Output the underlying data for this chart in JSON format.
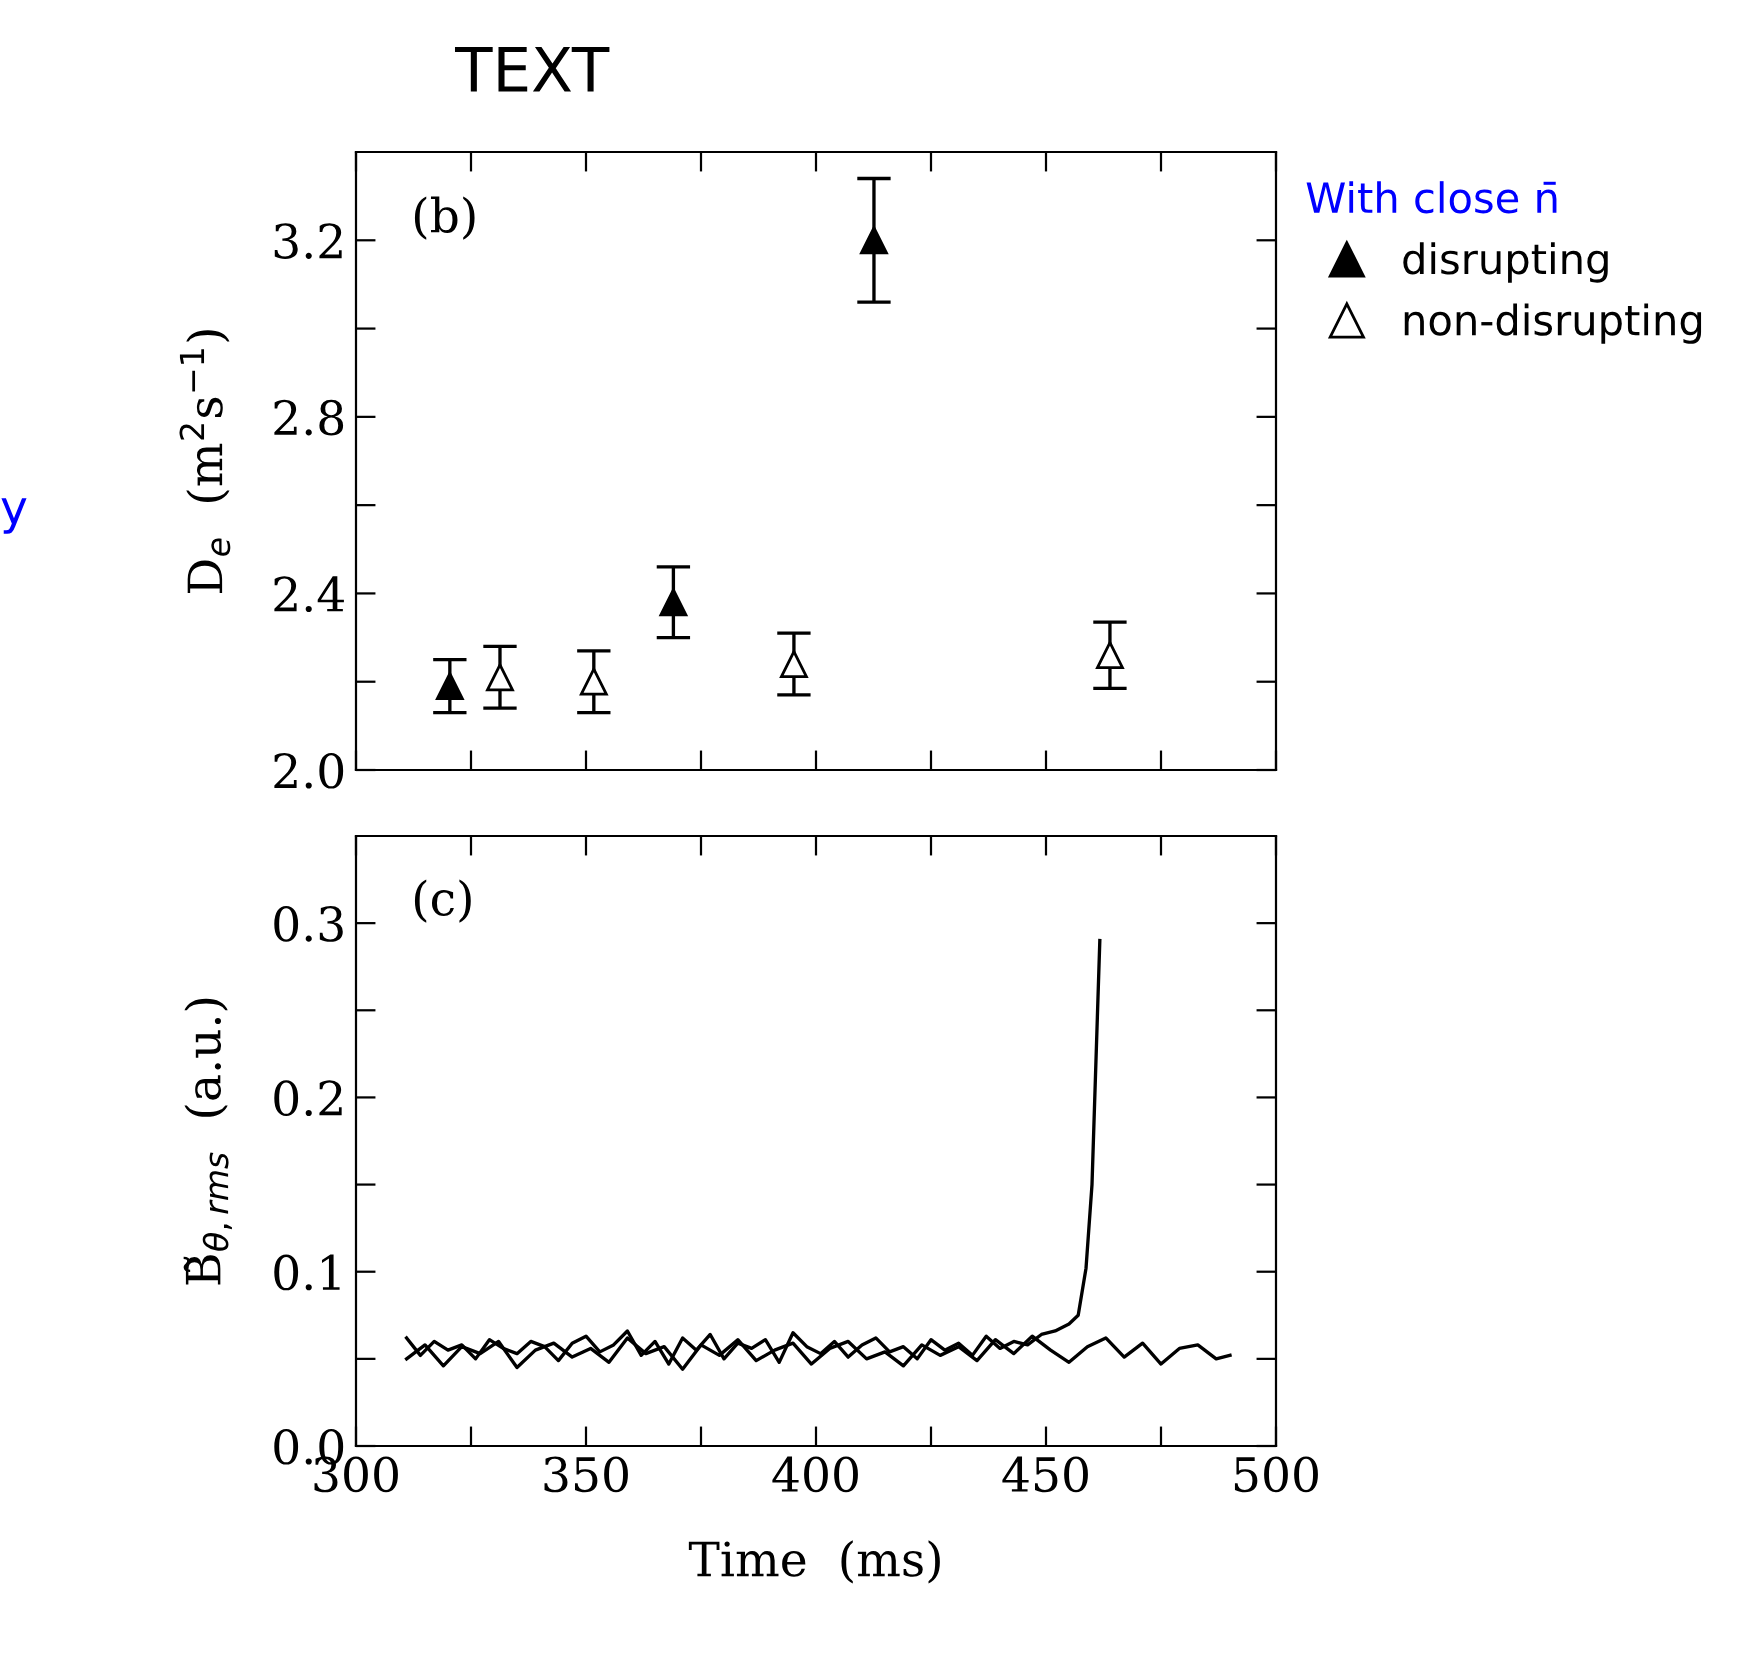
{
  "chart_data": [
    {
      "type": "scatter",
      "title": "TEXT",
      "ylabel": "D$_{e}$  (m$^{2}$s$^{−1}$)",
      "legend_title": "With close n̄",
      "legend": "right",
      "marker": "triangle",
      "annotations": [
        "(b)",
        "y"
      ],
      "xlim": [
        300,
        500
      ],
      "xticks": [
        {
          "value": 300,
          "label": null
        },
        {
          "value": 325,
          "label": null
        },
        {
          "value": 350,
          "label": null
        },
        {
          "value": 375,
          "label": null
        },
        {
          "value": 400,
          "label": null
        },
        {
          "value": 425,
          "label": null
        },
        {
          "value": 450,
          "label": null
        },
        {
          "value": 475,
          "label": null
        },
        {
          "value": 500,
          "label": null
        }
      ],
      "ylim": [
        2.0,
        3.4
      ],
      "yticks": [
        {
          "value": 2.0,
          "label": "2.0"
        },
        {
          "value": 2.2,
          "label": null
        },
        {
          "value": 2.4,
          "label": "2.4"
        },
        {
          "value": 2.6,
          "label": null
        },
        {
          "value": 2.8,
          "label": "2.8"
        },
        {
          "value": 3.0,
          "label": null
        },
        {
          "value": 3.2,
          "label": "3.2"
        }
      ],
      "tick_labels": "y",
      "series": [
        {
          "name": "disrupting",
          "color": "#000000",
          "x": [
            320.4,
            369,
            412.6
          ],
          "values": [
            2.19,
            2.38,
            3.2
          ],
          "errors": [
            0.06,
            0.08,
            0.14
          ]
        },
        {
          "name": "non-disrupting",
          "color": "#ffffff",
          "x": [
            331.3,
            351.7,
            395.2,
            463.9
          ],
          "values": [
            2.21,
            2.2,
            2.24,
            2.26
          ],
          "errors": [
            0.07,
            0.07,
            0.07,
            0.075
          ]
        }
      ]
    },
    {
      "type": "line",
      "xlabel": "Time  (ms)",
      "ylabel": "B̃$_{θ,rms}$  (a.u.)",
      "annotations": [
        "(c)"
      ],
      "xlim": [
        300,
        500
      ],
      "xticks": [
        300,
        {
          "value": 325,
          "label": null
        },
        350,
        {
          "value": 375,
          "label": null
        },
        400,
        {
          "value": 425,
          "label": null
        },
        450,
        {
          "value": 475,
          "label": null
        },
        500
      ],
      "ylim": [
        0,
        0.35
      ],
      "yticks": [
        {
          "value": 0.0,
          "label": "0.0"
        },
        {
          "value": 0.05,
          "label": null
        },
        {
          "value": 0.1,
          "label": "0.1"
        },
        {
          "value": 0.15,
          "label": null
        },
        {
          "value": 0.2,
          "label": "0.2"
        },
        {
          "value": 0.25,
          "label": null
        },
        {
          "value": 0.3,
          "label": "0.3"
        }
      ],
      "series": [
        {
          "color": "#000000",
          "x": [
            311,
            314,
            317,
            320,
            323,
            326,
            329,
            332,
            335,
            338,
            341,
            344,
            347,
            350,
            353,
            356,
            359,
            362,
            365,
            368,
            371,
            374,
            377,
            380,
            383,
            386,
            389,
            392,
            395,
            398,
            401,
            404,
            407,
            410,
            413,
            416,
            419,
            422,
            425,
            428,
            431,
            434,
            437,
            440,
            443,
            446,
            449,
            452,
            455,
            457,
            458.7,
            460,
            461.7
          ],
          "values": [
            0.062,
            0.052,
            0.06,
            0.055,
            0.058,
            0.05,
            0.061,
            0.056,
            0.053,
            0.06,
            0.057,
            0.049,
            0.059,
            0.063,
            0.054,
            0.058,
            0.066,
            0.052,
            0.06,
            0.047,
            0.062,
            0.055,
            0.064,
            0.05,
            0.059,
            0.056,
            0.061,
            0.048,
            0.065,
            0.057,
            0.053,
            0.06,
            0.051,
            0.058,
            0.062,
            0.054,
            0.057,
            0.05,
            0.061,
            0.055,
            0.059,
            0.052,
            0.063,
            0.056,
            0.06,
            0.058,
            0.064,
            0.066,
            0.07,
            0.075,
            0.102,
            0.15,
            0.29
          ]
        },
        {
          "color": "#000000",
          "x": [
            311,
            315,
            319,
            323,
            327,
            331,
            335,
            339,
            343,
            347,
            351,
            355,
            359,
            363,
            367,
            371,
            375,
            379,
            383,
            387,
            391,
            395,
            399,
            403,
            407,
            411,
            415,
            419,
            423,
            427,
            431,
            435,
            439,
            443,
            447,
            451,
            455,
            459,
            463,
            467,
            471,
            475,
            479,
            483,
            487,
            490
          ],
          "values": [
            0.05,
            0.058,
            0.046,
            0.057,
            0.053,
            0.06,
            0.045,
            0.055,
            0.059,
            0.051,
            0.056,
            0.048,
            0.062,
            0.053,
            0.057,
            0.044,
            0.058,
            0.052,
            0.061,
            0.049,
            0.055,
            0.059,
            0.047,
            0.056,
            0.06,
            0.05,
            0.054,
            0.046,
            0.058,
            0.052,
            0.057,
            0.049,
            0.061,
            0.053,
            0.063,
            0.055,
            0.048,
            0.057,
            0.062,
            0.051,
            0.059,
            0.047,
            0.056,
            0.058,
            0.05,
            0.052
          ]
        }
      ]
    }
  ]
}
